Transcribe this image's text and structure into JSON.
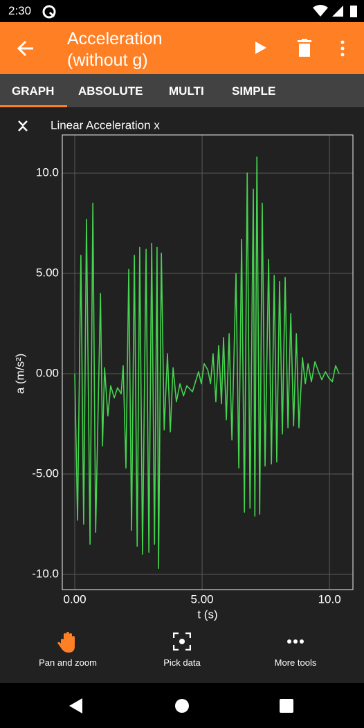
{
  "status_bar": {
    "time": "2:30"
  },
  "app_bar": {
    "title": "Acceleration (without g)"
  },
  "tabs": [
    "GRAPH",
    "ABSOLUTE",
    "MULTI",
    "SIMPLE"
  ],
  "chart_data": {
    "type": "line",
    "title": "Linear Acceleration x",
    "x_label": "t (s)",
    "y_label": "a (m/s²)",
    "color": "#45d44f",
    "grid": true,
    "x": [
      0.0,
      0.11,
      0.24,
      0.35,
      0.46,
      0.6,
      0.71,
      0.82,
      1.01,
      1.09,
      1.17,
      1.3,
      1.41,
      1.55,
      1.68,
      1.82,
      1.9,
      2.01,
      2.12,
      2.23,
      2.34,
      2.45,
      2.55,
      2.66,
      2.8,
      2.91,
      3.02,
      3.13,
      3.23,
      3.29,
      3.4,
      3.51,
      3.64,
      3.75,
      3.86,
      3.99,
      4.13,
      4.27,
      4.4,
      4.62,
      4.86,
      4.97,
      5.08,
      5.22,
      5.33,
      5.43,
      5.54,
      5.65,
      5.76,
      5.84,
      5.95,
      6.06,
      6.17,
      6.33,
      6.44,
      6.55,
      6.66,
      6.77,
      6.88,
      7.01,
      7.07,
      7.15,
      7.26,
      7.36,
      7.47,
      7.61,
      7.72,
      7.83,
      7.93,
      8.04,
      8.15,
      8.26,
      8.37,
      8.48,
      8.59,
      8.7,
      8.8,
      8.94,
      9.05,
      9.16,
      9.29,
      9.43,
      9.57,
      9.7,
      9.84,
      9.97,
      10.11,
      10.24,
      10.38
    ],
    "values": [
      0.0,
      -7.3,
      5.9,
      -7.5,
      7.7,
      -8.5,
      8.5,
      -7.9,
      4.0,
      -3.6,
      0.3,
      -2.1,
      -0.6,
      -1.2,
      -0.7,
      -1.0,
      0.4,
      -4.7,
      5.2,
      -7.8,
      5.9,
      -8.6,
      6.3,
      -9.0,
      6.2,
      -8.9,
      6.5,
      -8.5,
      6.3,
      -9.7,
      6.0,
      -2.8,
      1.0,
      -2.9,
      0.3,
      -1.4,
      -0.5,
      -1.1,
      -0.6,
      -0.9,
      0.1,
      -0.5,
      0.5,
      0.2,
      -0.5,
      1.0,
      -1.4,
      1.4,
      -1.5,
      1.8,
      -2.3,
      2.0,
      -3.3,
      5.0,
      -4.7,
      6.7,
      -6.9,
      10.0,
      -6.7,
      9.2,
      -7.1,
      10.8,
      -7.0,
      8.5,
      -4.6,
      5.7,
      -4.5,
      4.9,
      -4.4,
      4.6,
      -3.0,
      4.8,
      -2.7,
      3.0,
      -2.6,
      2.0,
      -2.7,
      0.8,
      -0.5,
      0.5,
      -0.4,
      0.6,
      0.1,
      -0.3,
      0.1,
      -0.2,
      -0.4,
      0.4,
      0.0
    ],
    "xlim": [
      -0.49,
      10.92
    ],
    "ylim": [
      -10.76,
      11.9
    ],
    "xticks": [
      {
        "value": 0,
        "label": "0.00"
      },
      {
        "value": 5,
        "label": "5.00"
      },
      {
        "value": 10,
        "label": "10.0"
      }
    ],
    "yticks": [
      {
        "value": -10,
        "label": "-10.0"
      },
      {
        "value": -5,
        "label": "-5.00"
      },
      {
        "value": 0,
        "label": "0.00"
      },
      {
        "value": 5,
        "label": "5.00"
      },
      {
        "value": 10,
        "label": "10.0"
      }
    ]
  },
  "toolbar": [
    "Pan and zoom",
    "Pick data",
    "More tools"
  ]
}
